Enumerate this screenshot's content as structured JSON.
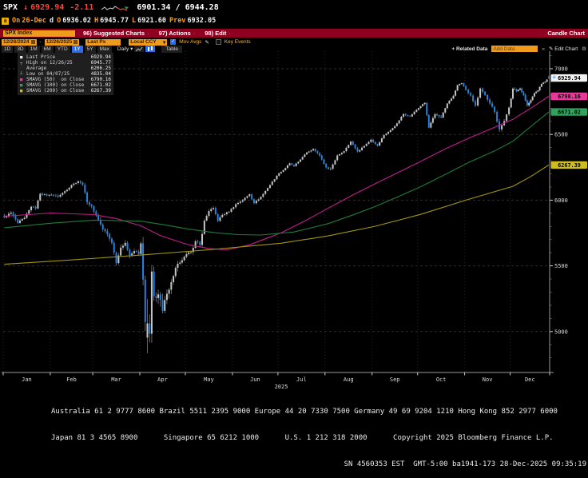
{
  "quote": {
    "ticker": "SPX",
    "direction": "↓",
    "last": "6929.94",
    "change": "-2.11",
    "range": "6901.34 / 6944.28",
    "session": {
      "on_label": "On",
      "date": "26-Dec",
      "d": "d",
      "o_label": "O",
      "open": "6936.02",
      "h_label": "H",
      "high": "6945.77",
      "l_label": "L",
      "low": "6921.60",
      "prev_label": "Prev",
      "prev": "6932.05"
    }
  },
  "command_bar": {
    "security": "SPX Index",
    "menus": [
      {
        "num": "96)",
        "label": "Suggested Charts"
      },
      {
        "num": "97)",
        "label": "Actions"
      },
      {
        "num": "98)",
        "label": "Edit"
      }
    ],
    "right_label": "Candle Chart"
  },
  "toolbar": {
    "date_from": "12/28/2024",
    "date_sep": "-",
    "date_to": "12/26/2025",
    "price_field": "Last Px",
    "currency": "Local CCY",
    "mov_avgs_label": "Mov Avgs",
    "key_events_label": "Key Events"
  },
  "period_bar": {
    "tabs": [
      "1D",
      "3D",
      "1M",
      "6M",
      "YTD",
      "1Y",
      "5Y",
      "Max"
    ],
    "selected": "1Y",
    "frequency": "Daily",
    "table_label": "Table",
    "related_data_label": "+ Related Data",
    "add_data_placeholder": "Add Data",
    "edit_chart_label": "Edit Chart"
  },
  "legend": {
    "rows": [
      {
        "marker": "■",
        "marker_color": "#e8e8e8",
        "label": "Last Price",
        "value": "6929.94"
      },
      {
        "marker": "┬",
        "marker_color": "#bbbbbb",
        "label": "High on 12/26/25",
        "value": "6945.77"
      },
      {
        "marker": "",
        "marker_color": "#bbbbbb",
        "label": "Average",
        "value": "6206.25"
      },
      {
        "marker": "┴",
        "marker_color": "#bbbbbb",
        "label": "Low on 04/07/25",
        "value": "4835.04"
      },
      {
        "marker": "■",
        "marker_color": "#e8399b",
        "label": "SMAVG (50)  on Close",
        "value": "6790.16"
      },
      {
        "marker": "■",
        "marker_color": "#2fa35c",
        "label": "SMAVG (100) on Close",
        "value": "6671.02"
      },
      {
        "marker": "■",
        "marker_color": "#cdbd22",
        "label": "SMAVG (200) on Close",
        "value": "6267.39"
      }
    ]
  },
  "chart_data": {
    "type": "candlestick",
    "symbol": "SPX Index",
    "period": "12/28/2024 - 12/26/2025, daily",
    "stats": {
      "last_price": 6929.94,
      "high": {
        "date": "12/26/25",
        "value": 6945.77
      },
      "average": 6206.25,
      "low": {
        "date": "04/07/25",
        "value": 4835.04
      }
    },
    "y_axis": {
      "ticks": [
        7000,
        6500,
        6000,
        5500,
        5000
      ],
      "minor_step": 100
    },
    "x_axis": {
      "months": [
        "Jan",
        "Feb",
        "Mar",
        "Apr",
        "May",
        "Jun",
        "Jul",
        "Aug",
        "Sep",
        "Oct",
        "Nov",
        "Dec"
      ],
      "year": "2025"
    },
    "trading_days_per_month": [
      21,
      19,
      21,
      21,
      21,
      20,
      22,
      21,
      21,
      23,
      19,
      22
    ],
    "close_anchors": [
      [
        0,
        5869,
        26
      ],
      [
        3,
        5905,
        24
      ],
      [
        6,
        5827,
        28
      ],
      [
        9,
        5865,
        26
      ],
      [
        12,
        5950,
        26
      ],
      [
        14,
        5937,
        22
      ],
      [
        16,
        6049,
        24
      ],
      [
        19,
        6035,
        20
      ],
      [
        21,
        6041,
        20
      ],
      [
        24,
        6026,
        24
      ],
      [
        27,
        6068,
        22
      ],
      [
        30,
        6115,
        20
      ],
      [
        33,
        6144,
        18
      ],
      [
        35,
        6117,
        24
      ],
      [
        37,
        5983,
        32
      ],
      [
        39,
        5955,
        28
      ],
      [
        42,
        5850,
        36
      ],
      [
        44,
        5778,
        40
      ],
      [
        46,
        5740,
        42
      ],
      [
        48,
        5675,
        44
      ],
      [
        50,
        5521,
        48
      ],
      [
        52,
        5639,
        44
      ],
      [
        54,
        5675,
        38
      ],
      [
        56,
        5581,
        42
      ],
      [
        58,
        5612,
        36
      ],
      [
        60,
        5590,
        38
      ],
      [
        61,
        5671,
        55
      ],
      [
        62,
        5396,
        85
      ],
      [
        63,
        5074,
        120
      ],
      [
        64,
        5062,
        140
      ],
      [
        65,
        4983,
        130
      ],
      [
        66,
        5457,
        140
      ],
      [
        67,
        5268,
        110
      ],
      [
        69,
        5283,
        95
      ],
      [
        71,
        5158,
        85
      ],
      [
        73,
        5288,
        75
      ],
      [
        75,
        5376,
        65
      ],
      [
        77,
        5485,
        55
      ],
      [
        79,
        5525,
        48
      ],
      [
        81,
        5569,
        42
      ],
      [
        84,
        5605,
        38
      ],
      [
        86,
        5687,
        34
      ],
      [
        88,
        5660,
        32
      ],
      [
        90,
        5844,
        36
      ],
      [
        92,
        5917,
        28
      ],
      [
        94,
        5941,
        24
      ],
      [
        96,
        5842,
        28
      ],
      [
        98,
        5888,
        24
      ],
      [
        101,
        5912,
        20
      ],
      [
        104,
        5970,
        22
      ],
      [
        107,
        6000,
        20
      ],
      [
        110,
        6045,
        18
      ],
      [
        112,
        5977,
        22
      ],
      [
        115,
        6025,
        18
      ],
      [
        118,
        6092,
        16
      ],
      [
        120,
        6141,
        15
      ],
      [
        123,
        6205,
        15
      ],
      [
        125,
        6228,
        16
      ],
      [
        128,
        6280,
        15
      ],
      [
        130,
        6259,
        16
      ],
      [
        133,
        6309,
        14
      ],
      [
        136,
        6363,
        13
      ],
      [
        139,
        6389,
        14
      ],
      [
        142,
        6339,
        18
      ],
      [
        145,
        6250,
        22
      ],
      [
        147,
        6238,
        24
      ],
      [
        150,
        6340,
        18
      ],
      [
        153,
        6373,
        16
      ],
      [
        156,
        6446,
        15
      ],
      [
        159,
        6370,
        20
      ],
      [
        162,
        6412,
        16
      ],
      [
        165,
        6460,
        15
      ],
      [
        168,
        6415,
        18
      ],
      [
        171,
        6495,
        16
      ],
      [
        174,
        6532,
        15
      ],
      [
        177,
        6584,
        14
      ],
      [
        180,
        6656,
        13
      ],
      [
        183,
        6637,
        14
      ],
      [
        186,
        6688,
        13
      ],
      [
        188,
        6715,
        16
      ],
      [
        190,
        6740,
        16
      ],
      [
        192,
        6552,
        28
      ],
      [
        195,
        6654,
        22
      ],
      [
        198,
        6629,
        22
      ],
      [
        201,
        6735,
        18
      ],
      [
        204,
        6795,
        16
      ],
      [
        206,
        6875,
        15
      ],
      [
        208,
        6890,
        14
      ],
      [
        210,
        6840,
        20
      ],
      [
        212,
        6796,
        24
      ],
      [
        214,
        6720,
        28
      ],
      [
        216,
        6850,
        22
      ],
      [
        218,
        6800,
        24
      ],
      [
        220,
        6737,
        28
      ],
      [
        222,
        6672,
        30
      ],
      [
        224,
        6538,
        34
      ],
      [
        226,
        6602,
        28
      ],
      [
        228,
        6705,
        24
      ],
      [
        230,
        6849,
        18
      ],
      [
        232,
        6829,
        20
      ],
      [
        234,
        6850,
        16
      ],
      [
        236,
        6800,
        20
      ],
      [
        238,
        6721,
        24
      ],
      [
        240,
        6761,
        18
      ],
      [
        242,
        6815,
        15
      ],
      [
        244,
        6835,
        13
      ],
      [
        246,
        6885,
        11
      ],
      [
        248,
        6901,
        11
      ],
      [
        250,
        6929.94,
        9
      ]
    ],
    "explicit_candles": [
      {
        "day": 64,
        "o": 4953.79,
        "h": 5246.57,
        "l": 4835.04,
        "c": 5062.25
      },
      {
        "day": 250,
        "o": 6936.02,
        "h": 6945.77,
        "l": 6921.6,
        "c": 6929.94
      }
    ],
    "moving_averages": [
      {
        "name": "SMAVG (50) on Close",
        "value": 6790.16,
        "color": "#c21d8b",
        "points": [
          [
            0,
            5878
          ],
          [
            21,
            5902
          ],
          [
            40,
            5890
          ],
          [
            50,
            5860
          ],
          [
            61,
            5805
          ],
          [
            70,
            5730
          ],
          [
            82,
            5665
          ],
          [
            92,
            5632
          ],
          [
            100,
            5622
          ],
          [
            110,
            5660
          ],
          [
            124,
            5752
          ],
          [
            136,
            5850
          ],
          [
            146,
            5940
          ],
          [
            157,
            6040
          ],
          [
            167,
            6125
          ],
          [
            178,
            6215
          ],
          [
            188,
            6295
          ],
          [
            200,
            6390
          ],
          [
            211,
            6470
          ],
          [
            222,
            6555
          ],
          [
            230,
            6615
          ],
          [
            240,
            6700
          ],
          [
            250,
            6790.16
          ]
        ]
      },
      {
        "name": "SMAVG (100) on Close",
        "value": 6671.02,
        "color": "#1e7c3c",
        "points": [
          [
            0,
            5790
          ],
          [
            21,
            5825
          ],
          [
            40,
            5848
          ],
          [
            61,
            5840
          ],
          [
            72,
            5812
          ],
          [
            82,
            5782
          ],
          [
            95,
            5752
          ],
          [
            105,
            5738
          ],
          [
            115,
            5735
          ],
          [
            130,
            5758
          ],
          [
            146,
            5822
          ],
          [
            157,
            5888
          ],
          [
            167,
            5952
          ],
          [
            178,
            6030
          ],
          [
            188,
            6102
          ],
          [
            200,
            6195
          ],
          [
            211,
            6285
          ],
          [
            222,
            6375
          ],
          [
            230,
            6448
          ],
          [
            240,
            6560
          ],
          [
            250,
            6671.02
          ]
        ]
      },
      {
        "name": "SMAVG (200) on Close",
        "value": 6267.39,
        "color": "#a39510",
        "points": [
          [
            0,
            5512
          ],
          [
            30,
            5545
          ],
          [
            61,
            5582
          ],
          [
            92,
            5622
          ],
          [
            124,
            5672
          ],
          [
            146,
            5728
          ],
          [
            167,
            5802
          ],
          [
            188,
            5892
          ],
          [
            210,
            6000
          ],
          [
            230,
            6105
          ],
          [
            240,
            6180
          ],
          [
            250,
            6267.39
          ]
        ]
      }
    ],
    "badges": [
      {
        "price": 6929.94,
        "value": "6929.94",
        "bg": "#f2f2f2"
      },
      {
        "price": 6790.16,
        "value": "6790.16",
        "bg": "#e8399b"
      },
      {
        "price": 6671.02,
        "value": "6671.02",
        "bg": "#2fa35c"
      },
      {
        "price": 6267.39,
        "value": "6267.39",
        "bg": "#cdbd22"
      }
    ],
    "colors": {
      "up": "#c6c6c6",
      "down": "#2382e2",
      "wick": "#8f8f8f",
      "grid": "#2c2c2c",
      "vgrid": "#242424",
      "axis": "#9a9a9a",
      "axis_text": "#d9d9d9",
      "marker_plus": "#4aa2ff"
    }
  },
  "footer": {
    "lines": [
      "Australia 61 2 9777 8600 Brazil 5511 2395 9000 Europe 44 20 7330 7500 Germany 49 69 9204 1210 Hong Kong 852 2977 6000",
      "Japan 81 3 4565 8900      Singapore 65 6212 1000      U.S. 1 212 318 2000      Copyright 2025 Bloomberg Finance L.P.",
      "SN 4560353 EST  GMT-5:00 ba1941-173 28-Dec-2025 09:35:19"
    ]
  }
}
